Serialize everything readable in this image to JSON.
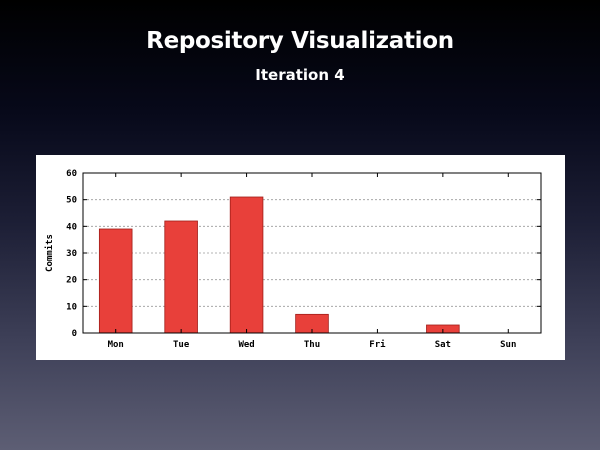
{
  "slide": {
    "title": "Repository Visualization",
    "subtitle": "Iteration 4"
  },
  "colors": {
    "bar_fill": "#e8403a",
    "bar_stroke": "#a01c18",
    "grid": "#9a9a9a",
    "panel_bg": "#ffffff"
  },
  "chart_data": {
    "type": "bar",
    "categories": [
      "Mon",
      "Tue",
      "Wed",
      "Thu",
      "Fri",
      "Sat",
      "Sun"
    ],
    "values": [
      39,
      42,
      51,
      7,
      0,
      3,
      0
    ],
    "title": "",
    "xlabel": "",
    "ylabel": "Commits",
    "ylim": [
      0,
      60
    ],
    "yticks": [
      0,
      10,
      20,
      30,
      40,
      50,
      60
    ],
    "grid": true,
    "legend": "none"
  }
}
